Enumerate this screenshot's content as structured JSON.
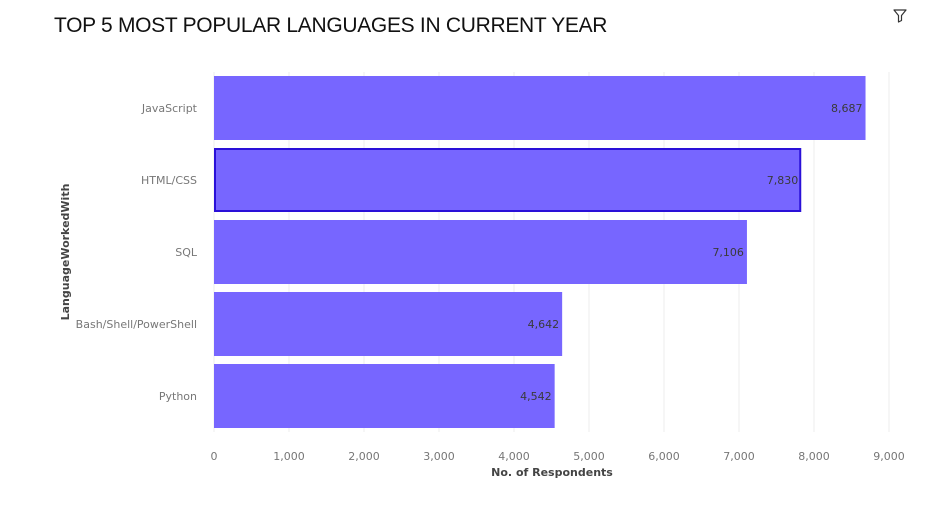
{
  "title": "TOP 5 MOST POPULAR LANGUAGES IN CURRENT YEAR",
  "icons": {
    "filter": "filter-icon"
  },
  "colors": {
    "bar": "#7766ff",
    "highlight_border": "#2a10d8",
    "grid": "#eeeeee"
  },
  "chart_data": {
    "type": "bar",
    "orientation": "horizontal",
    "categories": [
      "JavaScript",
      "HTML/CSS",
      "SQL",
      "Bash/Shell/PowerShell",
      "Python"
    ],
    "values": [
      8687,
      7830,
      7106,
      4642,
      4542
    ],
    "value_labels": [
      "8,687",
      "7,830",
      "7,106",
      "4,642",
      "4,542"
    ],
    "highlighted": "HTML/CSS",
    "xlabel": "No. of Respondents",
    "ylabel": "LanguageWorkedWith",
    "xlim": [
      0,
      9000
    ],
    "xticks": [
      0,
      1000,
      2000,
      3000,
      4000,
      5000,
      6000,
      7000,
      8000,
      9000
    ],
    "xtick_labels": [
      "0",
      "1,000",
      "2,000",
      "3,000",
      "4,000",
      "5,000",
      "6,000",
      "7,000",
      "8,000",
      "9,000"
    ],
    "grid": true
  }
}
